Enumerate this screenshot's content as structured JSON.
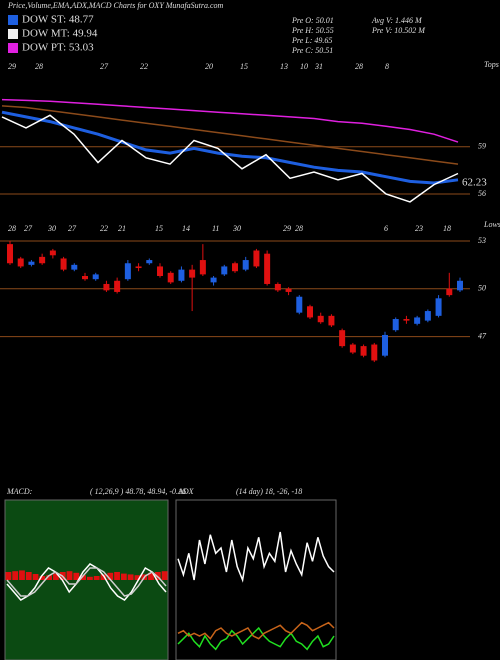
{
  "header": {
    "title": "Price,Volume,EMA,ADX,MACD Charts for OXY MunafaSutra.com",
    "legend": [
      {
        "label": "DOW ST: 48.77",
        "color": "#1e5fe0"
      },
      {
        "label": "DOW MT: 49.94",
        "color": "#f0f0f0"
      },
      {
        "label": "DOW PT: 53.03",
        "color": "#e020e0"
      }
    ],
    "stats": [
      "Pre  O: 50.01",
      "Pre  H: 50.55",
      "Pre  L: 49.65",
      "Pre  C: 50.51",
      "Avg V: 1.446  M",
      "Pre  V: 10.502  M"
    ]
  },
  "chart_data": [
    {
      "type": "line",
      "top_label": "Tops",
      "bottom_label": "Lows",
      "price_label": "62.23",
      "date_labels": [
        "29",
        "28",
        "27",
        "22",
        "20",
        "15",
        "13",
        "10",
        "31",
        "28",
        "8"
      ],
      "ylim": [
        55.3,
        64.2
      ],
      "yticks": [
        59,
        56
      ],
      "grid": true,
      "series": [
        {
          "name": "DOW PT",
          "color": "#e020e0",
          "values": [
            62.0,
            61.95,
            61.9,
            61.8,
            61.7,
            61.6,
            61.5,
            61.4,
            61.3,
            61.2,
            61.1,
            61.0,
            60.9,
            60.8,
            60.6,
            60.5,
            60.3,
            60.1,
            59.8,
            59.3
          ]
        },
        {
          "name": "DOW MT",
          "color": "#8b4a1a",
          "values": [
            61.6,
            61.5,
            61.3,
            61.1,
            60.9,
            60.7,
            60.5,
            60.3,
            60.1,
            59.9,
            59.7,
            59.5,
            59.3,
            59.1,
            58.9,
            58.7,
            58.5,
            58.3,
            58.1,
            57.9
          ]
        },
        {
          "name": "DOW ST",
          "color": "#1e5fe0",
          "values": [
            61.2,
            60.9,
            60.6,
            60.2,
            59.8,
            59.3,
            58.8,
            58.6,
            58.9,
            58.6,
            58.4,
            58.3,
            58.0,
            57.7,
            57.5,
            57.4,
            57.1,
            56.8,
            56.7,
            56.9
          ]
        },
        {
          "name": "Price",
          "color": "#ffffff",
          "values": [
            60.9,
            60.2,
            61.0,
            59.8,
            58.0,
            59.4,
            58.3,
            57.9,
            59.4,
            58.9,
            57.6,
            58.5,
            57.0,
            57.4,
            56.9,
            57.3,
            56.0,
            55.5,
            56.6,
            57.3
          ]
        }
      ]
    },
    {
      "type": "candlestick",
      "date_labels": [
        "28",
        "27",
        "30",
        "27",
        "22",
        "21",
        "15",
        "14",
        "11",
        "30",
        "29",
        "28",
        "6",
        "23",
        "18"
      ],
      "ylim": [
        38,
        54
      ],
      "yticks": [
        53,
        50,
        47
      ],
      "grid": true,
      "up_color": "#1e5fe0",
      "down_color": "#e01010",
      "open": [
        52.8,
        51.9,
        51.5,
        52.0,
        52.4,
        51.9,
        51.2,
        50.8,
        50.6,
        50.3,
        50.5,
        50.6,
        51.4,
        51.6,
        51.4,
        51.0,
        50.5,
        51.2,
        51.8,
        50.4,
        50.9,
        51.6,
        51.2,
        52.4,
        52.2,
        50.3,
        50.0,
        48.5,
        48.9,
        48.3,
        48.3,
        47.4,
        46.5,
        46.4,
        46.5,
        45.8,
        47.4,
        48.1,
        47.8,
        48.0,
        48.3,
        50.0,
        49.9
      ],
      "high": [
        53.0,
        52.0,
        51.8,
        52.2,
        52.5,
        52.0,
        51.6,
        51.0,
        51.0,
        50.5,
        50.7,
        51.8,
        51.6,
        51.9,
        51.6,
        51.1,
        51.4,
        51.5,
        52.8,
        50.8,
        51.5,
        51.7,
        52.0,
        52.5,
        52.4,
        50.4,
        50.1,
        49.6,
        49.0,
        48.5,
        48.4,
        47.5,
        46.6,
        46.5,
        46.6,
        47.3,
        48.2,
        48.3,
        48.3,
        48.7,
        49.6,
        51.0,
        50.7
      ],
      "low": [
        51.5,
        51.3,
        51.4,
        51.5,
        51.9,
        51.1,
        51.1,
        50.5,
        50.5,
        49.8,
        49.7,
        50.5,
        51.1,
        51.5,
        50.7,
        50.3,
        50.4,
        48.6,
        50.8,
        50.2,
        50.8,
        51.0,
        51.1,
        51.3,
        50.2,
        49.8,
        49.6,
        48.4,
        48.1,
        47.8,
        47.6,
        46.3,
        45.9,
        45.7,
        45.4,
        45.7,
        47.3,
        47.8,
        47.7,
        47.9,
        48.2,
        49.5,
        49.8
      ],
      "close": [
        51.6,
        51.4,
        51.7,
        51.6,
        52.1,
        51.2,
        51.5,
        50.6,
        50.9,
        49.9,
        49.8,
        51.6,
        51.3,
        51.8,
        50.8,
        50.4,
        51.2,
        50.7,
        50.9,
        50.7,
        51.4,
        51.1,
        51.8,
        51.4,
        50.3,
        49.9,
        49.8,
        49.5,
        48.2,
        47.9,
        47.7,
        46.4,
        46.0,
        45.8,
        45.5,
        47.1,
        48.1,
        48.0,
        48.2,
        48.6,
        49.4,
        49.6,
        50.5
      ]
    },
    {
      "type": "line",
      "title": "MACD:",
      "subtitle": "( 12,26,9 ) 48.78, 48.94, -0.16",
      "ylim": [
        -2,
        2
      ],
      "background": "#0b4a12",
      "bar_color": "#e01010",
      "histogram": [
        0.2,
        0.22,
        0.24,
        0.2,
        0.15,
        0.1,
        0.12,
        0.16,
        0.2,
        0.22,
        0.18,
        0.12,
        0.08,
        0.1,
        0.14,
        0.18,
        0.2,
        0.16,
        0.14,
        0.12,
        0.14,
        0.18,
        0.2,
        0.22
      ],
      "series": [
        {
          "name": "MACD",
          "color": "#ffffff",
          "values": [
            -0.1,
            -0.3,
            -0.5,
            -0.4,
            -0.2,
            0.1,
            0.3,
            0.2,
            0.0,
            -0.3,
            -0.1,
            0.2,
            0.4,
            0.3,
            0.1,
            -0.2,
            -0.4,
            -0.5,
            -0.3,
            0.0,
            0.3,
            0.2,
            -0.1,
            -0.3
          ]
        },
        {
          "name": "Signal",
          "color": "#cfcfcf",
          "values": [
            0.0,
            -0.2,
            -0.4,
            -0.4,
            -0.3,
            -0.1,
            0.1,
            0.2,
            0.1,
            -0.1,
            -0.1,
            0.1,
            0.3,
            0.3,
            0.2,
            0.0,
            -0.2,
            -0.4,
            -0.35,
            -0.15,
            0.1,
            0.2,
            0.05,
            -0.15
          ]
        }
      ]
    },
    {
      "type": "line",
      "title": "ADX",
      "subtitle": "(14  day) 18,  -26,  -18",
      "ylim": [
        0,
        60
      ],
      "background": "#000000",
      "series": [
        {
          "name": "ADX",
          "color": "#ffffff",
          "values": [
            38,
            32,
            40,
            30,
            45,
            36,
            47,
            40,
            42,
            33,
            45,
            35,
            30,
            42,
            38,
            46,
            35,
            40,
            37,
            48,
            33,
            41,
            36,
            32,
            44,
            37,
            46,
            39,
            35,
            33
          ]
        },
        {
          "name": "+DI",
          "color": "#20e020",
          "values": [
            6,
            8,
            10,
            7,
            5,
            9,
            6,
            4,
            7,
            8,
            11,
            9,
            6,
            8,
            10,
            12,
            9,
            7,
            6,
            5,
            8,
            10,
            7,
            6,
            4,
            7,
            9,
            5,
            6,
            9
          ]
        },
        {
          "name": "-DI",
          "color": "#c8641a",
          "values": [
            10,
            11,
            9,
            10,
            9,
            10,
            8,
            11,
            12,
            10,
            9,
            10,
            11,
            12,
            9,
            8,
            10,
            11,
            12,
            13,
            11,
            10,
            12,
            14,
            13,
            11,
            12,
            13,
            14,
            12
          ]
        }
      ]
    }
  ]
}
